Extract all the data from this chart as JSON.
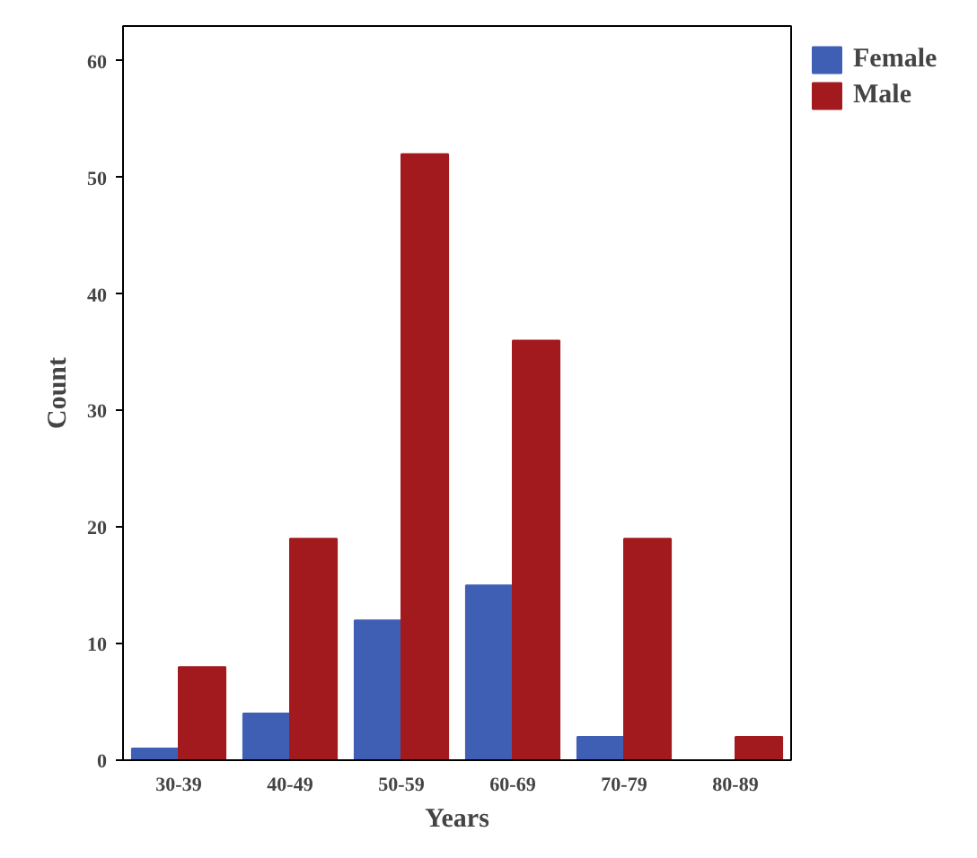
{
  "chart_data": {
    "type": "bar",
    "xlabel": "Years",
    "ylabel": "Count",
    "categories": [
      "30-39",
      "40-49",
      "50-59",
      "60-69",
      "70-79",
      "80-89"
    ],
    "series": [
      {
        "name": "Female",
        "color": "#3f5fb5",
        "values": [
          1,
          4,
          12,
          15,
          2,
          null
        ]
      },
      {
        "name": "Male",
        "color": "#a31a1e",
        "values": [
          8,
          19,
          52,
          36,
          19,
          2
        ]
      }
    ],
    "ylim": [
      0,
      63
    ],
    "yticks": [
      0,
      10,
      20,
      30,
      40,
      50,
      60
    ],
    "grid": false,
    "legend": "top right"
  }
}
